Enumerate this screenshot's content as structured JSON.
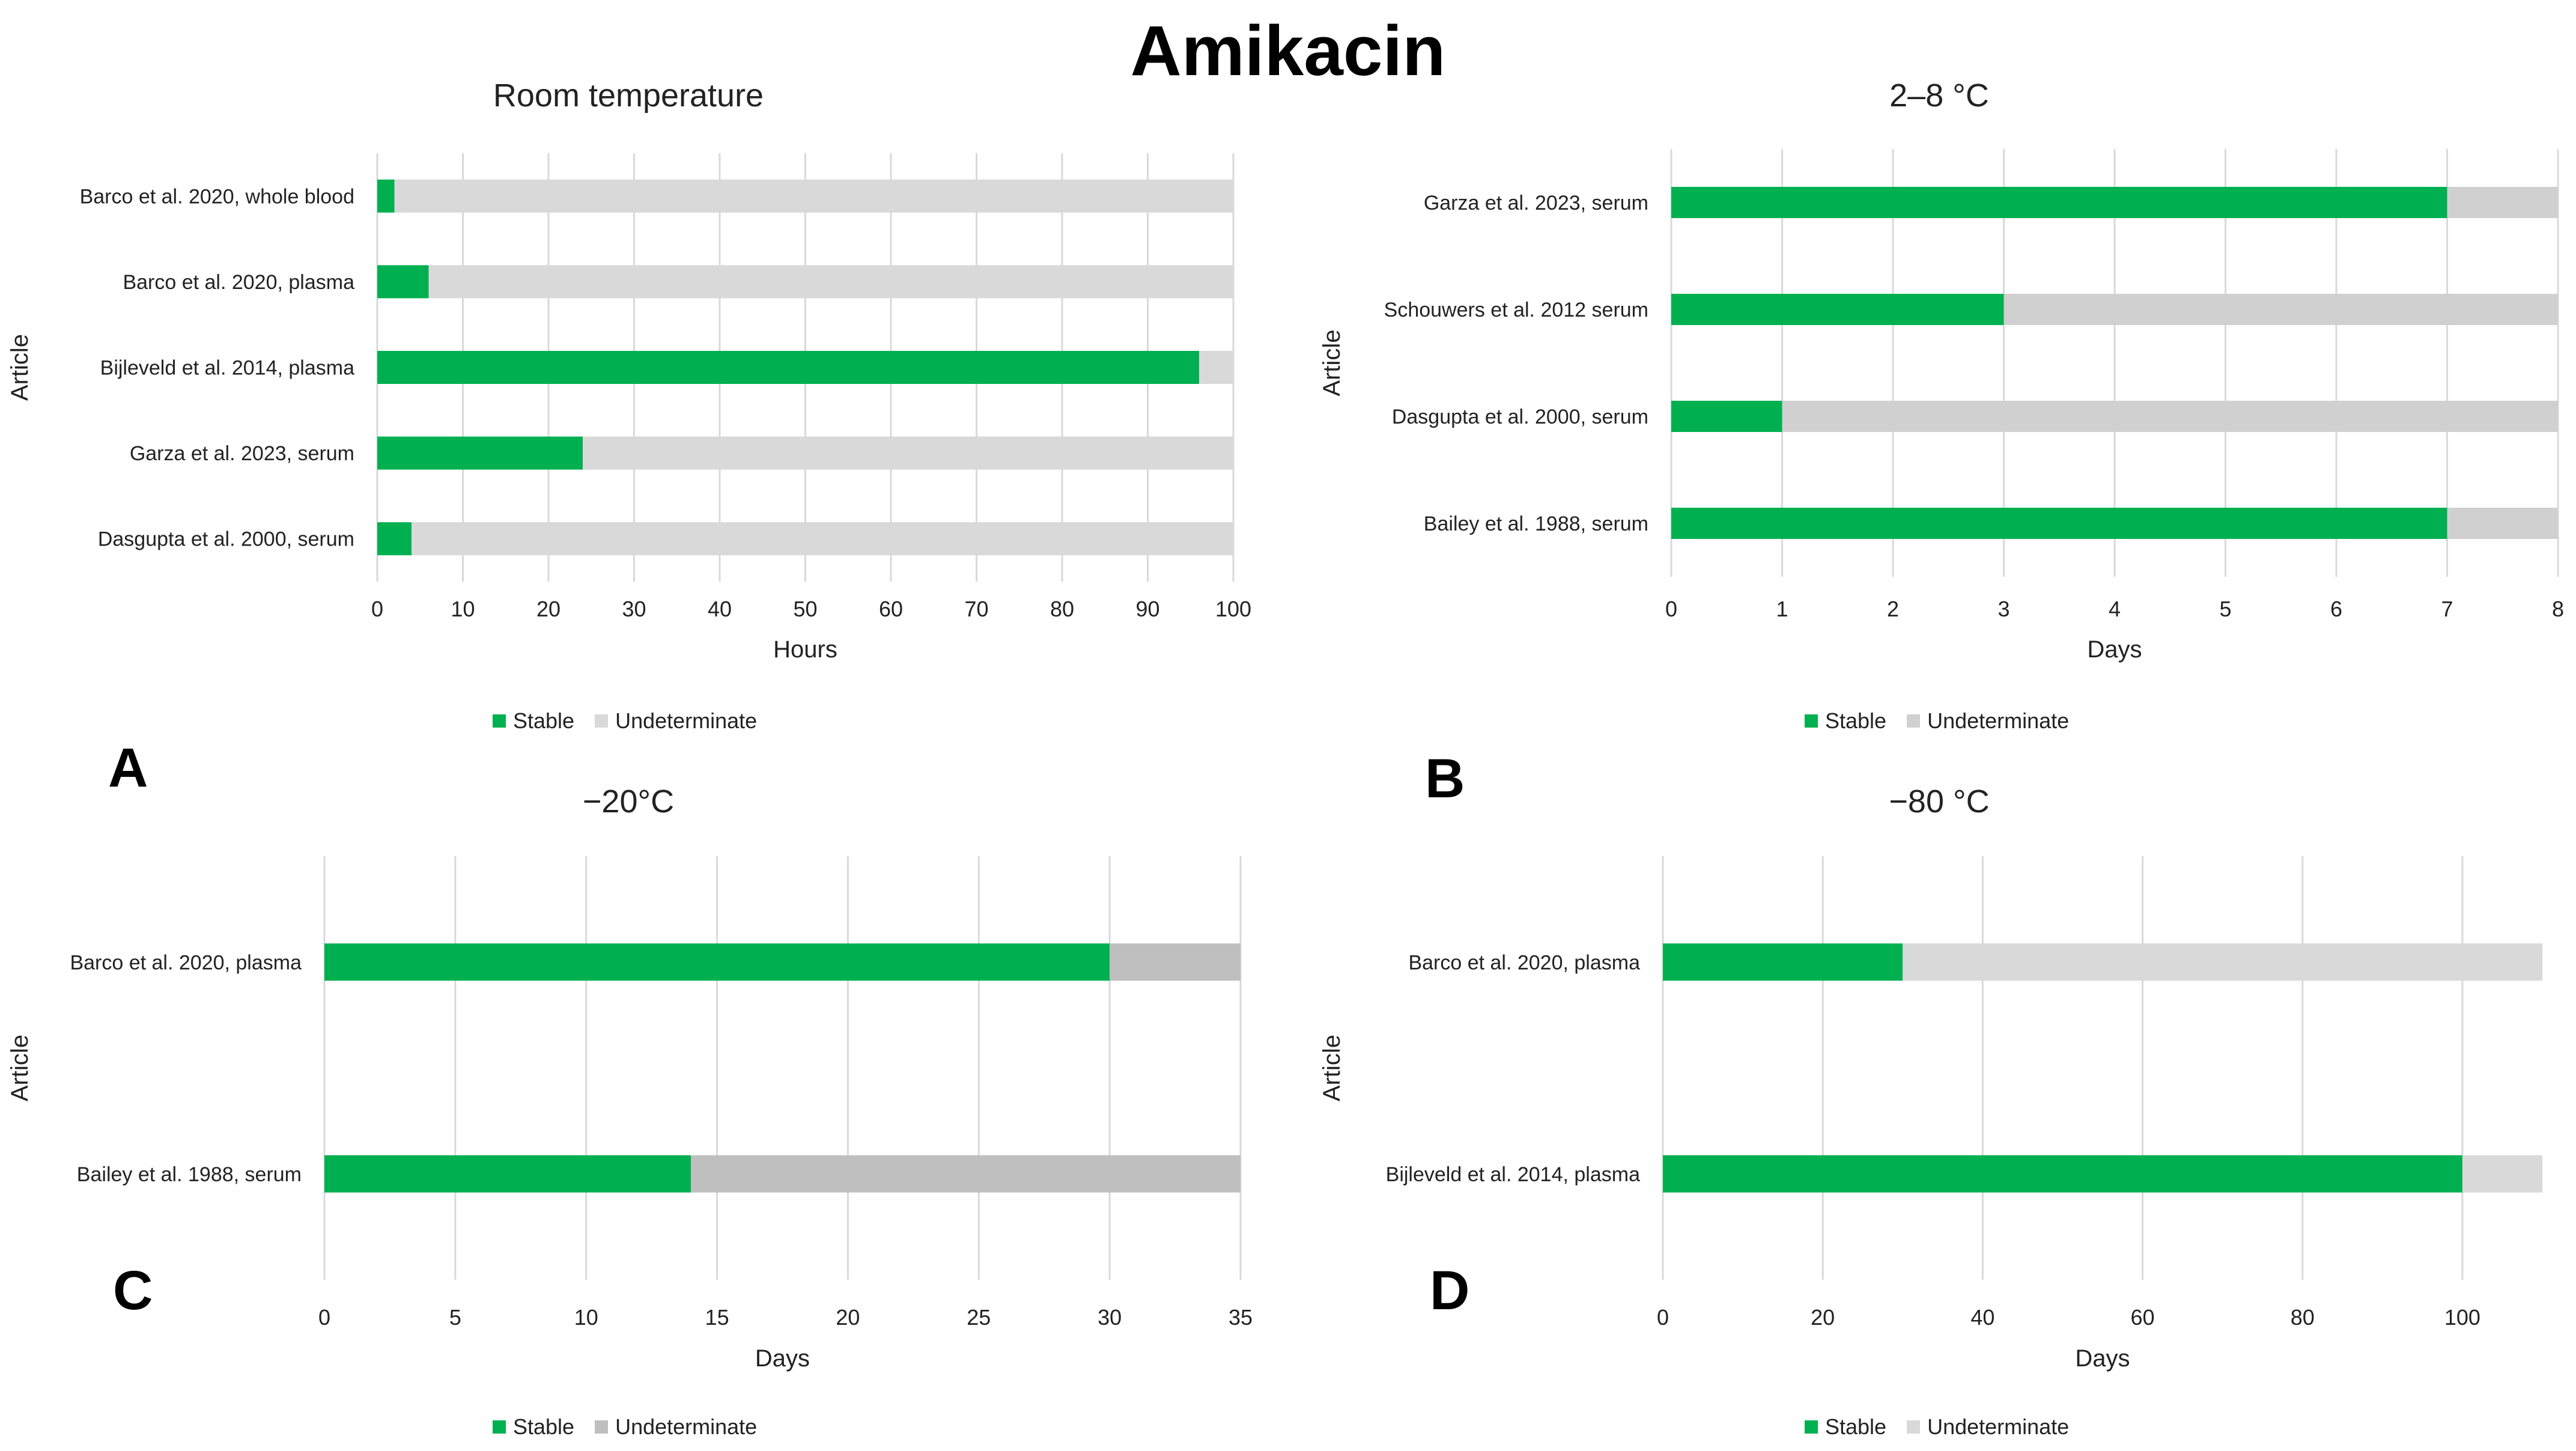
{
  "title": "Amikacin",
  "colors": {
    "stable": "#00b050",
    "undeterminate_light": "#d9d9d9",
    "undeterminate_mid": "#d0d0d0",
    "undeterminate_dark": "#bfbfbf",
    "grid": "#d9d9d9"
  },
  "legend": {
    "stable": "Stable",
    "undeterminate": "Undeterminate"
  },
  "chart_data": [
    {
      "panel": "A",
      "type": "bar",
      "orientation": "horizontal",
      "stacked": true,
      "title": "Room temperature",
      "xlabel": "Hours",
      "ylabel": "Article",
      "xlim": [
        0,
        100
      ],
      "xticks": [
        0,
        10,
        20,
        30,
        40,
        50,
        60,
        70,
        80,
        90,
        100
      ],
      "grid": true,
      "legend_position": "bottom",
      "categories": [
        "Barco et al. 2020, whole blood",
        "Barco et al. 2020, plasma",
        "Bijleveld et al. 2014, plasma",
        "Garza et al. 2023, serum",
        "Dasgupta et al. 2000, serum"
      ],
      "series": [
        {
          "name": "Stable",
          "values": [
            2,
            6,
            96,
            24,
            4
          ]
        },
        {
          "name": "Undeterminate",
          "values": [
            98,
            94,
            4,
            76,
            96
          ]
        }
      ]
    },
    {
      "panel": "B",
      "type": "bar",
      "orientation": "horizontal",
      "stacked": true,
      "title": "2–8 °C",
      "xlabel": "Days",
      "ylabel": "Article",
      "xlim": [
        0,
        8
      ],
      "xticks": [
        0,
        1,
        2,
        3,
        4,
        5,
        6,
        7,
        8
      ],
      "grid": true,
      "legend_position": "bottom",
      "categories": [
        "Garza et al. 2023, serum",
        "Schouwers et al. 2012 serum",
        "Dasgupta et al. 2000, serum",
        "Bailey et al. 1988, serum"
      ],
      "series": [
        {
          "name": "Stable",
          "values": [
            7,
            3,
            1,
            7
          ]
        },
        {
          "name": "Undeterminate",
          "values": [
            1,
            5,
            7,
            1
          ]
        }
      ]
    },
    {
      "panel": "C",
      "type": "bar",
      "orientation": "horizontal",
      "stacked": true,
      "title": "−20°C",
      "xlabel": "Days",
      "ylabel": "Article",
      "xlim": [
        0,
        35
      ],
      "xticks": [
        0,
        5,
        10,
        15,
        20,
        25,
        30,
        35
      ],
      "grid": true,
      "legend_position": "bottom",
      "categories": [
        "Barco et al. 2020, plasma",
        "Bailey et al. 1988, serum"
      ],
      "series": [
        {
          "name": "Stable",
          "values": [
            30,
            14
          ]
        },
        {
          "name": "Undeterminate",
          "values": [
            5,
            21
          ]
        }
      ]
    },
    {
      "panel": "D",
      "type": "bar",
      "orientation": "horizontal",
      "stacked": true,
      "title": "−80 °C",
      "xlabel": "Days",
      "ylabel": "Article",
      "xlim": [
        0,
        110
      ],
      "xticks": [
        0,
        20,
        40,
        60,
        80,
        100
      ],
      "grid": true,
      "legend_position": "bottom",
      "categories": [
        "Barco et al. 2020, plasma",
        "Bijleveld et al. 2014, plasma"
      ],
      "series": [
        {
          "name": "Stable",
          "values": [
            30,
            100
          ]
        },
        {
          "name": "Undeterminate",
          "values": [
            80,
            10
          ]
        }
      ]
    }
  ]
}
